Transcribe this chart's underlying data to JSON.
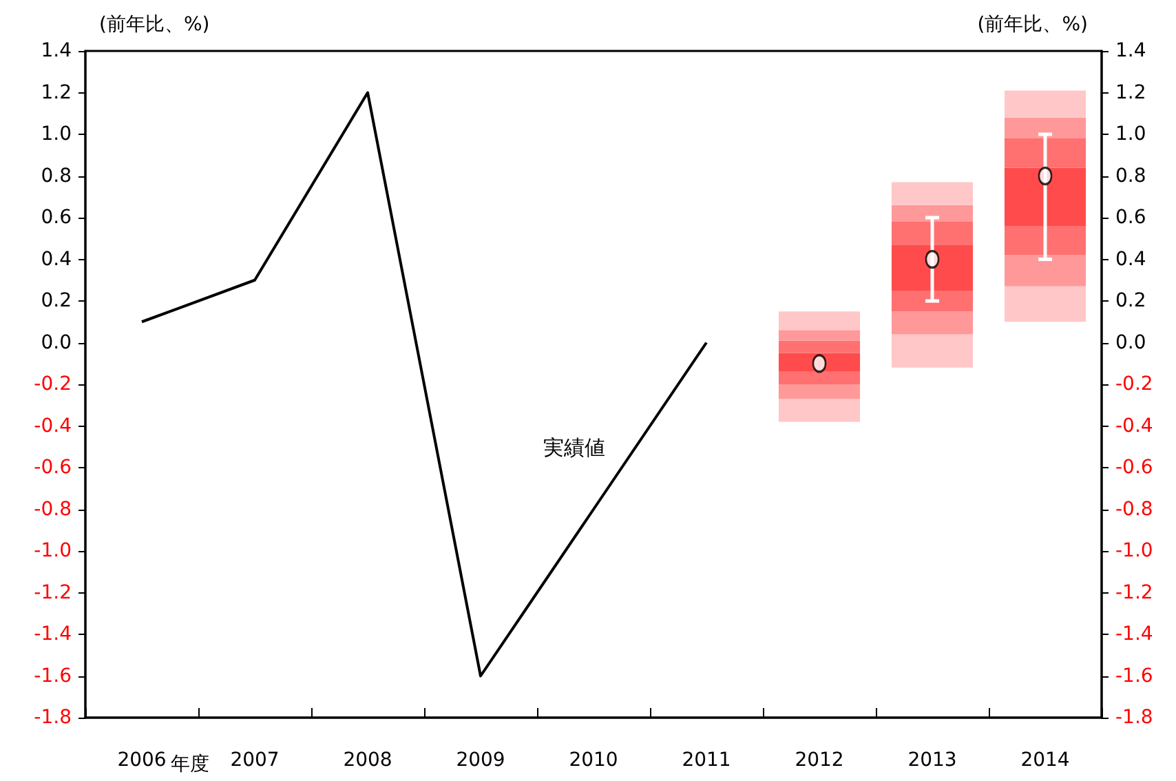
{
  "chart_data": {
    "type": "bar",
    "ylabel": "(前年比、%)",
    "y2label": "(前年比、%)",
    "xlabel": "年度",
    "categories": [
      "2006",
      "2007",
      "2008",
      "2009",
      "2010",
      "2011",
      "2012",
      "2013",
      "2014"
    ],
    "series": [
      {
        "color": "#ffc7c7",
        "base": [
          null,
          null,
          null,
          null,
          null,
          null,
          -0.38,
          -0.12,
          0.1
        ],
        "values": [
          null,
          null,
          null,
          null,
          null,
          null,
          0.11,
          0.16,
          0.17
        ]
      },
      {
        "color": "#ff9999",
        "base": [
          null,
          null,
          null,
          null,
          null,
          null,
          -0.27,
          0.04,
          0.27
        ],
        "values": [
          null,
          null,
          null,
          null,
          null,
          null,
          0.07,
          0.11,
          0.15
        ]
      },
      {
        "color": "#ff7070",
        "base": [
          null,
          null,
          null,
          null,
          null,
          null,
          -0.2,
          0.15,
          0.42
        ],
        "values": [
          null,
          null,
          null,
          null,
          null,
          null,
          0.06,
          0.1,
          0.14
        ]
      },
      {
        "color": "#ff4b4b",
        "base": [
          null,
          null,
          null,
          null,
          null,
          null,
          -0.14,
          0.25,
          0.56
        ],
        "values": [
          null,
          null,
          null,
          null,
          null,
          null,
          0.09,
          0.22,
          0.28
        ]
      },
      {
        "color": "#ff7070",
        "base": [
          null,
          null,
          null,
          null,
          null,
          null,
          -0.05,
          0.47,
          0.84
        ],
        "values": [
          null,
          null,
          null,
          null,
          null,
          null,
          0.06,
          0.11,
          0.14
        ]
      },
      {
        "color": "#ff9999",
        "base": [
          null,
          null,
          null,
          null,
          null,
          null,
          0.01,
          0.58,
          0.98
        ],
        "values": [
          null,
          null,
          null,
          null,
          null,
          null,
          0.05,
          0.08,
          0.1
        ]
      },
      {
        "color": "#ffc7c7",
        "base": [
          null,
          null,
          null,
          null,
          null,
          null,
          0.06,
          0.66,
          1.08
        ],
        "values": [
          null,
          null,
          null,
          null,
          null,
          null,
          0.09,
          0.11,
          0.13
        ]
      },
      {
        "type": "line",
        "color": "#000000",
        "marker": "none",
        "line_style": "solid",
        "values": [
          0.1,
          0.3,
          1.2,
          -1.6,
          -0.8,
          0.0,
          null,
          null,
          null
        ]
      },
      {
        "type": "scatter",
        "color": "#ffffff",
        "marker": "circle",
        "values": [
          null,
          null,
          null,
          null,
          null,
          null,
          -0.1,
          0.4,
          0.8
        ],
        "errors": [
          null,
          null,
          null,
          null,
          null,
          null,
          null,
          [
            0.2,
            0.6
          ],
          [
            0.4,
            1.0
          ]
        ]
      }
    ],
    "ylim": [
      -1.8,
      1.4
    ],
    "yticks": [
      -1.8,
      -1.6,
      -1.4,
      -1.2,
      {
        "value": -1.0,
        "label": "-1.0"
      },
      -0.8,
      -0.6,
      -0.4,
      -0.2,
      {
        "value": 0,
        "label": "0.0"
      },
      0.2,
      0.4,
      0.6,
      0.8,
      {
        "value": 1.0,
        "label": "1.0"
      },
      1.2,
      1.4
    ],
    "y2lim": [
      -1.8,
      1.4
    ],
    "y2ticks": [
      -1.8,
      -1.6,
      -1.4,
      -1.2,
      {
        "value": -1.0,
        "label": "-1.0"
      },
      -0.8,
      -0.6,
      -0.4,
      -0.2,
      {
        "value": 0,
        "label": "0.0"
      },
      0.2,
      0.4,
      0.6,
      0.8,
      {
        "value": 1.0,
        "label": "1.0"
      },
      1.2,
      1.4
    ],
    "annotations": [
      "実績値"
    ],
    "grid": false
  }
}
